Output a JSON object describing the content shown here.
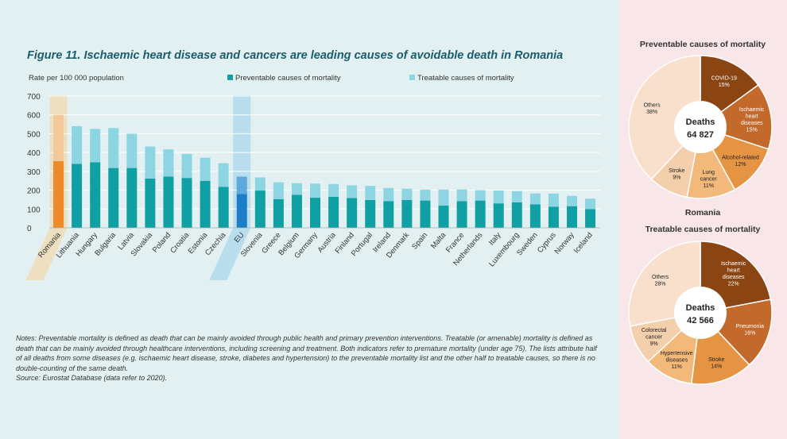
{
  "figure": {
    "title": "Figure 11. Ischaemic heart disease and cancers are leading causes of avoidable death in Romania",
    "notes": "Notes: Preventable mortality is defined as death that can be mainly avoided through public health and primary prevention interventions. Treatable (or amenable) mortality is defined as death that can be mainly avoided through healthcare interventions, including screening and treatment. Both indicators refer to premature mortality (under age 75). The lists attribute half of all deaths from some diseases (e.g. ischaemic heart disease, stroke, diabetes and hypertension) to the preventable mortality list and the other half to treatable causes, so there is no double-counting of the same death.",
    "source": "Source: Eurostat Database (data refer to 2020)."
  },
  "right_panel": {
    "preventable_title": "Preventable causes of mortality",
    "country": "Romania",
    "treatable_title": "Treatable causes of mortality"
  },
  "colors": {
    "preventable": "#10a0a4",
    "treatable": "#8ed5e3",
    "romania_prev": "#ee8a28",
    "romania_treat": "#f3c99c",
    "romania_band": "#efdcb6",
    "eu_prev": "#1b7ec7",
    "eu_treat": "#5ea8db",
    "eu_band": "#b0d9ec"
  },
  "chart_data": [
    {
      "type": "bar",
      "stacked": true,
      "ylabel": "Rate per 100 000 population",
      "ylim": [
        0,
        700
      ],
      "yticks": [
        0,
        100,
        200,
        300,
        400,
        500,
        600,
        700
      ],
      "legend_position": "top",
      "categories": [
        "Romania",
        "Lithuania",
        "Hungary",
        "Bulgaria",
        "Latvia",
        "Slovakia",
        "Poland",
        "Croatia",
        "Estonia",
        "Czechia",
        "EU",
        "Slovenia",
        "Greece",
        "Belgium",
        "Germany",
        "Austria",
        "Finland",
        "Portugal",
        "Ireland",
        "Denmark",
        "Spain",
        "Malta",
        "France",
        "Netherlands",
        "Italy",
        "Luxembourg",
        "Sweden",
        "Cyprus",
        "Norway",
        "Iceland"
      ],
      "highlight": [
        "Romania",
        "EU"
      ],
      "series": [
        {
          "name": "Preventable causes of mortality",
          "values": [
            355,
            340,
            348,
            318,
            318,
            262,
            272,
            265,
            250,
            218,
            180,
            198,
            152,
            175,
            160,
            165,
            158,
            148,
            142,
            148,
            145,
            118,
            142,
            145,
            130,
            135,
            125,
            112,
            115,
            100
          ]
        },
        {
          "name": "Treatable causes of mortality",
          "values": [
            245,
            200,
            178,
            212,
            182,
            170,
            145,
            128,
            123,
            125,
            92,
            70,
            90,
            62,
            75,
            68,
            68,
            75,
            70,
            60,
            58,
            85,
            62,
            55,
            68,
            60,
            58,
            70,
            55,
            55
          ]
        }
      ]
    },
    {
      "type": "pie",
      "title": "Preventable causes of mortality",
      "center_label": "Deaths",
      "center_value": "64 827",
      "slices": [
        {
          "label": "COVID-19",
          "value": 15,
          "color": "#8b4513"
        },
        {
          "label": "Ischaemic heart diseases",
          "value": 15,
          "color": "#c4692c"
        },
        {
          "label": "Alcohol-related",
          "value": 12,
          "color": "#e59443"
        },
        {
          "label": "Lung cancer",
          "value": 11,
          "color": "#f2b97b"
        },
        {
          "label": "Stroke",
          "value": 9,
          "color": "#f3cfab"
        },
        {
          "label": "Others",
          "value": 38,
          "color": "#f8e0cc"
        }
      ]
    },
    {
      "type": "pie",
      "title": "Treatable causes of mortality",
      "center_label": "Deaths",
      "center_value": "42 566",
      "slices": [
        {
          "label": "Ischaemic heart diseases",
          "value": 22,
          "color": "#8b4513"
        },
        {
          "label": "Pneumonia",
          "value": 16,
          "color": "#c4692c"
        },
        {
          "label": "Stroke",
          "value": 14,
          "color": "#e59443"
        },
        {
          "label": "Hypertensive diseases",
          "value": 11,
          "color": "#f2b97b"
        },
        {
          "label": "Colorectal cancer",
          "value": 9,
          "color": "#f3cfab"
        },
        {
          "label": "Others",
          "value": 28,
          "color": "#f8e0cc"
        }
      ]
    }
  ]
}
